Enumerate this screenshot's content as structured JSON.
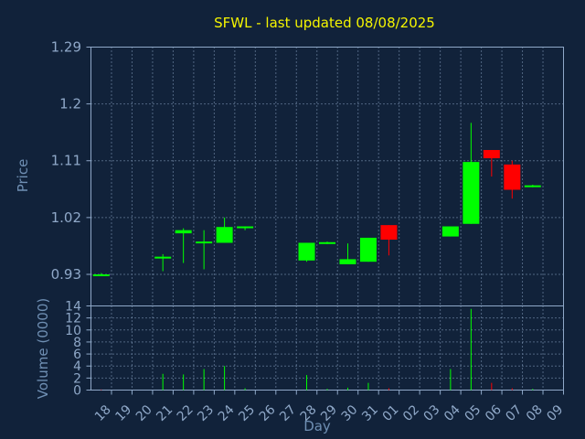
{
  "chart_data": [
    {
      "type": "candlestick",
      "title": "SFWL - last updated 08/08/2025",
      "ylabel": "Price",
      "ylim": [
        0.88,
        1.29
      ],
      "yticks": [
        "0.93",
        "1.02",
        "1.11",
        "1.2",
        "1.29"
      ],
      "grid": true,
      "x": [
        "18",
        "19",
        "20",
        "21",
        "22",
        "23",
        "24",
        "25",
        "26",
        "27",
        "28",
        "29",
        "30",
        "31",
        "01",
        "02",
        "03",
        "04",
        "05",
        "06",
        "07",
        "08",
        "09"
      ],
      "candles": [
        {
          "x": "18",
          "open": 0.93,
          "high": 0.932,
          "low": 0.928,
          "close": 0.93
        },
        {
          "x": "21",
          "open": 0.957,
          "high": 0.962,
          "low": 0.935,
          "close": 0.958
        },
        {
          "x": "22",
          "open": 0.995,
          "high": 1.003,
          "low": 0.948,
          "close": 1.0
        },
        {
          "x": "23",
          "open": 0.981,
          "high": 1.0,
          "low": 0.938,
          "close": 0.982
        },
        {
          "x": "24",
          "open": 0.98,
          "high": 1.02,
          "low": 0.98,
          "close": 1.005
        },
        {
          "x": "25",
          "open": 1.004,
          "high": 1.006,
          "low": 1.0,
          "close": 1.006
        },
        {
          "x": "28",
          "open": 0.952,
          "high": 0.98,
          "low": 0.95,
          "close": 0.98
        },
        {
          "x": "29",
          "open": 0.98,
          "high": 0.982,
          "low": 0.978,
          "close": 0.981
        },
        {
          "x": "30",
          "open": 0.946,
          "high": 0.979,
          "low": 0.946,
          "close": 0.954
        },
        {
          "x": "31",
          "open": 0.95,
          "high": 0.988,
          "low": 0.95,
          "close": 0.988
        },
        {
          "x": "01",
          "open": 1.008,
          "high": 1.008,
          "low": 0.96,
          "close": 0.985
        },
        {
          "x": "04",
          "open": 0.99,
          "high": 1.006,
          "low": 0.99,
          "close": 1.006
        },
        {
          "x": "05",
          "open": 1.01,
          "high": 1.17,
          "low": 1.01,
          "close": 1.108
        },
        {
          "x": "06",
          "open": 1.127,
          "high": 1.127,
          "low": 1.085,
          "close": 1.114
        },
        {
          "x": "07",
          "open": 1.104,
          "high": 1.11,
          "low": 1.05,
          "close": 1.064
        },
        {
          "x": "08",
          "open": 1.07,
          "high": 1.072,
          "low": 1.068,
          "close": 1.071
        }
      ]
    },
    {
      "type": "bar",
      "xlabel": "Day",
      "ylabel": "Volume (0000)",
      "ylim": [
        0,
        14
      ],
      "yticks": [
        "0",
        "2",
        "4",
        "6",
        "8",
        "10",
        "12",
        "14"
      ],
      "grid": true,
      "x": [
        "18",
        "19",
        "20",
        "21",
        "22",
        "23",
        "24",
        "25",
        "26",
        "27",
        "28",
        "29",
        "30",
        "31",
        "01",
        "02",
        "03",
        "04",
        "05",
        "06",
        "07",
        "08",
        "09"
      ],
      "bars": [
        {
          "x": "18",
          "value": 0.1,
          "direction": "down"
        },
        {
          "x": "21",
          "value": 2.7,
          "direction": "up"
        },
        {
          "x": "22",
          "value": 2.6,
          "direction": "up"
        },
        {
          "x": "23",
          "value": 3.5,
          "direction": "up"
        },
        {
          "x": "24",
          "value": 4.0,
          "direction": "up"
        },
        {
          "x": "25",
          "value": 0.3,
          "direction": "up"
        },
        {
          "x": "28",
          "value": 2.5,
          "direction": "up"
        },
        {
          "x": "29",
          "value": 0.2,
          "direction": "up"
        },
        {
          "x": "30",
          "value": 0.4,
          "direction": "up"
        },
        {
          "x": "31",
          "value": 1.2,
          "direction": "up"
        },
        {
          "x": "01",
          "value": 0.3,
          "direction": "down"
        },
        {
          "x": "04",
          "value": 3.5,
          "direction": "up"
        },
        {
          "x": "05",
          "value": 13.5,
          "direction": "up"
        },
        {
          "x": "06",
          "value": 1.2,
          "direction": "down"
        },
        {
          "x": "07",
          "value": 0.3,
          "direction": "down"
        },
        {
          "x": "08",
          "value": 0.2,
          "direction": "up"
        }
      ]
    }
  ],
  "colors": {
    "background": "#11223a",
    "up": "#00ff00",
    "down": "#ff0000",
    "grid": "#8fa8c8",
    "axis_text": "#8fa8c8",
    "title": "#f5f500"
  }
}
